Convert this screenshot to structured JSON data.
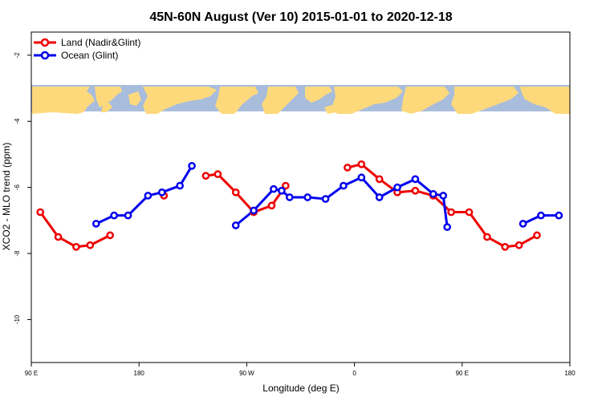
{
  "chart_data": {
    "type": "line",
    "title": "45N-60N August (Ver 10)   2015-01-01 to 2020-12-18",
    "xlabel": "Longitude (deg E)",
    "ylabel": "XCO2 - MLO trend (ppm)",
    "xlim": [
      -90,
      180
    ],
    "ylim": [
      -11.3,
      -1.3
    ],
    "x_ticks": [
      {
        "value": -90,
        "label": "90 E"
      },
      {
        "value": -36,
        "label": "180"
      },
      {
        "value": 18,
        "label": "90 W"
      },
      {
        "value": 72,
        "label": "0"
      },
      {
        "value": 126,
        "label": "90 E"
      },
      {
        "value": 180,
        "label": "180"
      }
    ],
    "y_ticks": [
      {
        "value": -2,
        "label": "-2"
      },
      {
        "value": -4,
        "label": "-4"
      },
      {
        "value": -6,
        "label": "-6"
      },
      {
        "value": -8,
        "label": "-8"
      },
      {
        "value": -10,
        "label": "-10"
      }
    ],
    "map_strip": {
      "y_top": -2.9,
      "y_bottom": -3.7,
      "ocean_color": "#a8bcdc",
      "land_color": "#fdd97c"
    },
    "legend_position": "top-left",
    "series": [
      {
        "name": "Land (Nadir&Glint)",
        "color": "#ee0000",
        "segments": [
          [
            [
              -85.5,
              -6.75
            ],
            [
              -76.5,
              -7.5
            ],
            [
              -67.5,
              -7.8
            ],
            [
              -60.5,
              -7.75
            ],
            [
              -50.5,
              -7.45
            ]
          ],
          [
            [
              -23.5,
              -6.25
            ]
          ],
          [
            [
              -2.5,
              -5.65
            ],
            [
              3.5,
              -5.6
            ],
            [
              12.5,
              -6.15
            ],
            [
              21.5,
              -6.75
            ],
            [
              30.5,
              -6.55
            ],
            [
              37.5,
              -5.95
            ]
          ],
          [
            [
              68.5,
              -5.4
            ],
            [
              75.5,
              -5.3
            ],
            [
              84.5,
              -5.75
            ],
            [
              93.5,
              -6.15
            ],
            [
              102.5,
              -6.1
            ],
            [
              111.5,
              -6.25
            ],
            [
              120.5,
              -6.75
            ],
            [
              129.5,
              -6.75
            ],
            [
              138.5,
              -7.5
            ],
            [
              147.5,
              -7.8
            ],
            [
              154.5,
              -7.75
            ],
            [
              163.5,
              -7.45
            ]
          ]
        ]
      },
      {
        "name": "Ocean (Glint)",
        "color": "#0000ee",
        "segments": [
          [
            [
              -57.5,
              -7.1
            ],
            [
              -48.5,
              -6.85
            ],
            [
              -41.5,
              -6.85
            ],
            [
              -31.5,
              -6.25
            ],
            [
              -24.5,
              -6.15
            ],
            [
              -15.5,
              -5.95
            ],
            [
              -9.5,
              -5.35
            ]
          ],
          [
            [
              12.5,
              -7.15
            ],
            [
              21.5,
              -6.7
            ],
            [
              31.5,
              -6.05
            ],
            [
              35.5,
              -6.1
            ],
            [
              39.5,
              -6.3
            ],
            [
              48.5,
              -6.3
            ],
            [
              57.5,
              -6.35
            ],
            [
              66.5,
              -5.95
            ],
            [
              75.5,
              -5.7
            ],
            [
              84.5,
              -6.3
            ],
            [
              93.5,
              -6.0
            ],
            [
              102.5,
              -5.75
            ],
            [
              111.5,
              -6.2
            ],
            [
              116.5,
              -6.25
            ],
            [
              118.5,
              -7.2
            ]
          ],
          [
            [
              156.5,
              -7.1
            ],
            [
              165.5,
              -6.85
            ],
            [
              174.5,
              -6.85
            ]
          ]
        ]
      }
    ]
  }
}
